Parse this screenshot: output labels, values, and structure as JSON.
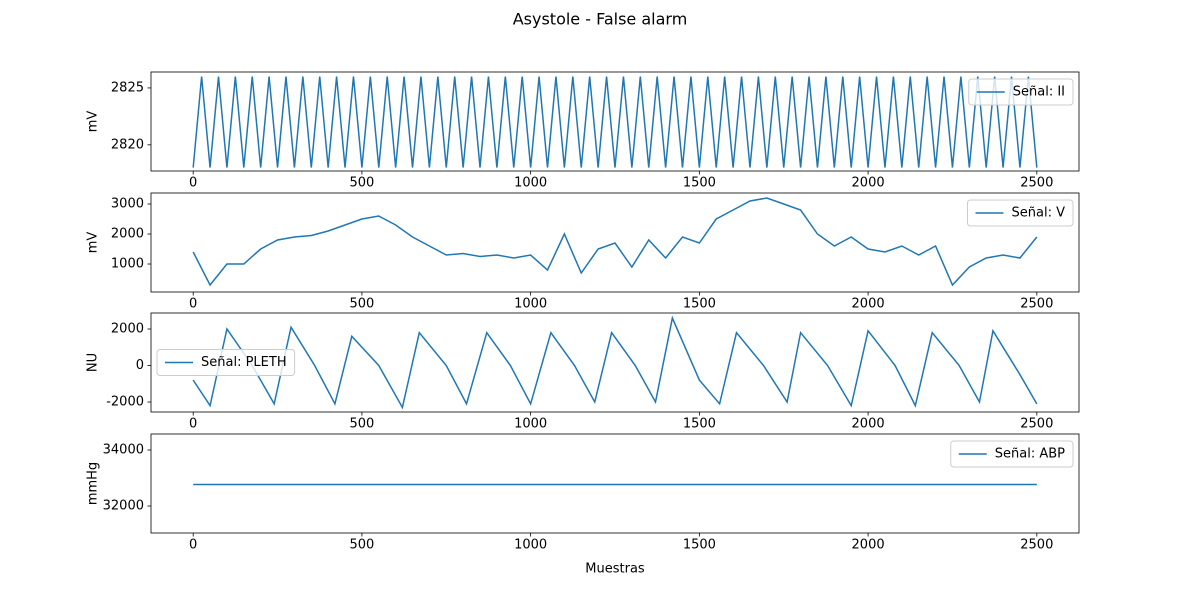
{
  "title": "Asystole - False alarm",
  "chart_data": [
    {
      "type": "line",
      "y_label": "mV",
      "legend": "upper right",
      "x": [
        0,
        25,
        50,
        75,
        100,
        125,
        150,
        175,
        200,
        225,
        250,
        275,
        300,
        325,
        350,
        375,
        400,
        425,
        450,
        475,
        500,
        525,
        550,
        575,
        600,
        625,
        650,
        675,
        700,
        725,
        750,
        775,
        800,
        825,
        850,
        875,
        900,
        925,
        950,
        975,
        1000,
        1025,
        1050,
        1075,
        1100,
        1125,
        1150,
        1175,
        1200,
        1225,
        1250,
        1275,
        1300,
        1325,
        1350,
        1375,
        1400,
        1425,
        1450,
        1475,
        1500,
        1525,
        1550,
        1575,
        1600,
        1625,
        1650,
        1675,
        1700,
        1725,
        1750,
        1775,
        1800,
        1825,
        1850,
        1875,
        1900,
        1925,
        1950,
        1975,
        2000,
        2025,
        2050,
        2075,
        2100,
        2125,
        2150,
        2175,
        2200,
        2225,
        2250,
        2275,
        2300,
        2325,
        2350,
        2375,
        2400,
        2425,
        2450,
        2475,
        2500
      ],
      "series": [
        {
          "name": "Señal: II",
          "color": "#1f77b4",
          "values": [
            2818,
            2826,
            2818,
            2826,
            2818,
            2826,
            2818,
            2826,
            2818,
            2826,
            2818,
            2826,
            2818,
            2826,
            2818,
            2826,
            2818,
            2826,
            2818,
            2826,
            2818,
            2826,
            2818,
            2826,
            2818,
            2826,
            2818,
            2826,
            2818,
            2826,
            2818,
            2826,
            2818,
            2826,
            2818,
            2826,
            2818,
            2826,
            2818,
            2826,
            2818,
            2826,
            2818,
            2826,
            2818,
            2826,
            2818,
            2826,
            2818,
            2826,
            2818,
            2826,
            2818,
            2826,
            2818,
            2826,
            2818,
            2826,
            2818,
            2826,
            2818,
            2826,
            2818,
            2826,
            2818,
            2826,
            2818,
            2826,
            2818,
            2826,
            2818,
            2826,
            2818,
            2826,
            2818,
            2826,
            2818,
            2826,
            2818,
            2826,
            2818,
            2826,
            2818,
            2826,
            2818,
            2826,
            2818,
            2826,
            2818,
            2826,
            2818,
            2826,
            2818,
            2826,
            2818,
            2826,
            2818,
            2826,
            2818,
            2826,
            2818
          ]
        }
      ],
      "xlim": [
        -125,
        2625
      ],
      "xticks": [
        0,
        500,
        1000,
        1500,
        2000,
        2500
      ],
      "ylim": [
        2817.7,
        2826.4
      ],
      "yticks": [
        2820,
        2825
      ]
    },
    {
      "type": "line",
      "y_label": "mV",
      "legend": "upper right",
      "x": [
        0,
        50,
        100,
        150,
        200,
        250,
        300,
        350,
        400,
        450,
        500,
        550,
        600,
        650,
        700,
        750,
        800,
        850,
        900,
        950,
        1000,
        1050,
        1100,
        1150,
        1200,
        1250,
        1300,
        1350,
        1400,
        1450,
        1500,
        1550,
        1600,
        1650,
        1700,
        1750,
        1800,
        1850,
        1900,
        1950,
        2000,
        2050,
        2100,
        2150,
        2200,
        2250,
        2300,
        2350,
        2400,
        2450,
        2500
      ],
      "series": [
        {
          "name": "Señal: V",
          "color": "#1f77b4",
          "values": [
            1400,
            300,
            1000,
            1000,
            1500,
            1800,
            1900,
            1950,
            2100,
            2300,
            2500,
            2600,
            2300,
            1900,
            1600,
            1300,
            1350,
            1250,
            1300,
            1200,
            1300,
            800,
            2000,
            700,
            1500,
            1700,
            900,
            1800,
            1200,
            1900,
            1700,
            2500,
            2800,
            3100,
            3200,
            3000,
            2800,
            2000,
            1600,
            1900,
            1500,
            1400,
            1600,
            1300,
            1600,
            300,
            900,
            1200,
            1300,
            1200,
            1900
          ]
        }
      ],
      "xlim": [
        -125,
        2625
      ],
      "xticks": [
        0,
        500,
        1000,
        1500,
        2000,
        2500
      ],
      "ylim": [
        67,
        3367
      ],
      "yticks": [
        1000,
        2000,
        3000
      ]
    },
    {
      "type": "line",
      "y_label": "NU",
      "legend": "center left",
      "x": [
        0,
        50,
        100,
        175,
        240,
        290,
        360,
        420,
        470,
        550,
        620,
        670,
        750,
        810,
        870,
        940,
        1000,
        1060,
        1130,
        1190,
        1240,
        1310,
        1370,
        1420,
        1500,
        1560,
        1610,
        1690,
        1760,
        1800,
        1880,
        1950,
        2000,
        2080,
        2140,
        2190,
        2270,
        2330,
        2370,
        2450,
        2500
      ],
      "series": [
        {
          "name": "Señal: PLETH",
          "color": "#1f77b4",
          "values": [
            -800,
            -2200,
            2000,
            0,
            -2100,
            2100,
            0,
            -2100,
            1600,
            0,
            -2300,
            1800,
            0,
            -2100,
            1800,
            0,
            -2100,
            1800,
            0,
            -2000,
            1800,
            0,
            -2000,
            2600,
            -800,
            -2100,
            1800,
            0,
            -2000,
            1800,
            0,
            -2200,
            1900,
            0,
            -2200,
            1800,
            0,
            -2000,
            1900,
            -500,
            -2100
          ]
        }
      ],
      "xlim": [
        -125,
        2625
      ],
      "xticks": [
        0,
        500,
        1000,
        1500,
        2000,
        2500
      ],
      "ylim": [
        -2548,
        2877
      ],
      "yticks": [
        -2000,
        0,
        2000
      ]
    },
    {
      "type": "line",
      "y_label": "mmHg",
      "x_label": "Muestras",
      "legend": "upper right",
      "x": [
        0,
        2500
      ],
      "series": [
        {
          "name": "Señal: ABP",
          "color": "#1f77b4",
          "values": [
            32768,
            32768
          ]
        }
      ],
      "xlim": [
        -125,
        2625
      ],
      "xticks": [
        0,
        500,
        1000,
        1500,
        2000,
        2500
      ],
      "ylim": [
        31036,
        34571
      ],
      "yticks": [
        32000,
        34000
      ]
    }
  ]
}
